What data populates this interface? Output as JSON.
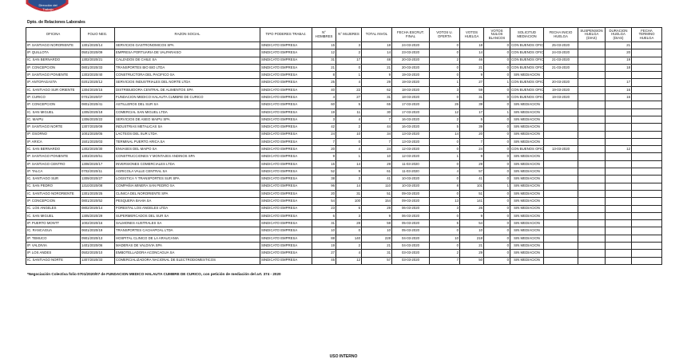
{
  "header": {
    "organization": "Dirección del Trabajo",
    "department": "Dpto. de Relaciones Laborales"
  },
  "table": {
    "columns": [
      "OFICINA",
      "FOLIO NEG.",
      "RAZON SOCIAL",
      "TIPO PODERES TRABAJ.",
      "N° HOMBRES",
      "N° MUJERES",
      "TOTAL INVOL",
      "FECHA ESCRUT. FINAL",
      "VOTOS U. OFERTA",
      "VOTOS HUELGA",
      "VOTOS NULOS BLANCOS",
      "SOLICITUD MEDIACION",
      "FECHA INICIO HUELGA",
      "SUSPENSION HUELGA (DIAS)",
      "DURACION HUELGA (DIAS)",
      "FECHA TERMINO HUELGA"
    ],
    "rows": [
      [
        "IP. SANTIAGO NORORIENTE",
        "1301/2020/14",
        "SERVICIOS GASTRONOMICOS SPA",
        "SINDICATO EMPRESA",
        15,
        3,
        18,
        "24-03-2020",
        0,
        18,
        0,
        "CON BUENOS OFICIOS",
        "25-03-2020",
        null,
        21,
        null
      ],
      [
        "IP. QUILLOTA",
        "0501/2020/09",
        "EMPRESA PORTUARIA DE VALPARAISO",
        "SINDICATO EMPRESA",
        12,
        2,
        14,
        "23-03-2020",
        0,
        14,
        0,
        "CON BUENOS OFICIOS",
        "24-03-2020",
        null,
        20,
        null
      ],
      [
        "IC. SAN BERNARDO",
        "1302/2020/21",
        "CALZADOS DE CHILE SA",
        "SINDICATO EMPRESA",
        31,
        17,
        48,
        "20-03-2020",
        2,
        46,
        0,
        "CON BUENOS OFICIOS",
        "21-03-2020",
        null,
        19,
        null
      ],
      [
        "IP. CONCEPCION",
        "0801/2020/33",
        "TRANSPORTES BIO BIO LTDA",
        "SINDICATO EMPRESA",
        21,
        0,
        21,
        "20-03-2020",
        0,
        21,
        0,
        "CON BUENOS OFICIOS",
        "21-03-2020",
        null,
        18,
        null
      ],
      [
        "IP. SANTIAGO PONIENTE",
        "1303/2020/40",
        "CONSTRUCTORA DEL PACIFICO SA",
        "SINDICATO EMPRESA",
        8,
        1,
        9,
        "19-03-2020",
        0,
        9,
        0,
        "SIN MEDIACION",
        null,
        null,
        null,
        null
      ],
      [
        "IP. ANTOFAGASTA",
        "0201/2020/12",
        "SERVICIOS INDUSTRIALES DEL NORTE LTDA",
        "SINDICATO EMPRESA",
        25,
        4,
        29,
        "19-03-2020",
        1,
        27,
        1,
        "CON BUENOS OFICIOS",
        "20-03-2020",
        null,
        17,
        null
      ],
      [
        "IC. SANTIAGO SUR ORIENTE",
        "1304/2020/15",
        "DISTRIBUIDORA CENTRAL DE ALIMENTOS SPA",
        "SINDICATO EMPRESA",
        40,
        22,
        62,
        "18-03-2020",
        3,
        59,
        0,
        "CON BUENOS OFICIOS",
        "19-03-2020",
        null,
        16,
        null
      ],
      [
        "IP. CURICO",
        "0701/2020/07",
        "FUNDACION MEDICO HALAUTA CUMBRE DE CURICO",
        "SINDICATO EMPRESA",
        4,
        27,
        31,
        "18-03-2020",
        0,
        31,
        0,
        "CON BUENOS OFICIOS",
        "19-03-2020",
        null,
        16,
        null
      ],
      [
        "IP. CONCEPCION",
        "0801/2020/41",
        "ASTILLEROS DEL SUR SA",
        "SINDICATO EMPRESA",
        60,
        5,
        65,
        "17-03-2020",
        26,
        39,
        0,
        "SIN MEDIACION",
        null,
        null,
        null,
        null
      ],
      [
        "IC. SAN MIGUEL",
        "1305/2020/18",
        "COMERCIAL SAN MIGUEL LTDA",
        "SINDICATO EMPRESA",
        19,
        11,
        30,
        "17-03-2020",
        12,
        17,
        1,
        "SIN MEDIACION",
        null,
        null,
        null,
        null
      ],
      [
        "IC. MAIPU",
        "1306/2020/22",
        "SERVICIOS DE ASEO MAIPU SPA",
        "SINDICATO EMPRESA",
        3,
        4,
        7,
        "16-03-2020",
        2,
        5,
        0,
        "SIN MEDIACION",
        null,
        null,
        null,
        null
      ],
      [
        "IP. SANTIAGO NORTE",
        "1307/2020/09",
        "INDUSTRIAS METALICAS SA",
        "SINDICATO EMPRESA",
        42,
        2,
        44,
        "16-03-2020",
        5,
        39,
        0,
        "SIN MEDIACION",
        null,
        null,
        null,
        null
      ],
      [
        "IP. OSORNO",
        "1001/2020/05",
        "LACTEOS DEL SUR LTDA",
        "SINDICATO EMPRESA",
        24,
        10,
        34,
        "13-03-2020",
        14,
        20,
        0,
        "SIN MEDIACION",
        null,
        null,
        null,
        null
      ],
      [
        "IP. ARICA",
        "1501/2020/03",
        "TERMINAL PUERTO ARICA SA",
        "SINDICATO EMPRESA",
        7,
        0,
        7,
        "13-03-2020",
        0,
        7,
        0,
        "SIN MEDIACION",
        null,
        null,
        null,
        null
      ],
      [
        "IC. SAN BERNARDO",
        "1302/2020/30",
        "ENVASES DEL MAIPO SA",
        "SINDICATO EMPRESA",
        20,
        4,
        24,
        "12-03-2020",
        0,
        24,
        0,
        "CON BUENOS OFICIOS",
        "13-03-2020",
        null,
        12,
        null
      ],
      [
        "IP. SANTIAGO PONIENTE",
        "1303/2020/51",
        "CONSTRUCCIONES Y MONTAJES ANDINOS SPA",
        "SINDICATO EMPRESA",
        9,
        1,
        10,
        "12-03-2020",
        1,
        9,
        0,
        "SIN MEDIACION",
        null,
        null,
        null,
        null
      ],
      [
        "IP. SANTIAGO CENTRO",
        "1308/2020/17",
        "INVERSIONES COMERCIALES LTDA",
        "SINDICATO EMPRESA",
        15,
        14,
        29,
        "11-03-2020",
        0,
        29,
        0,
        "SIN MEDIACION",
        null,
        null,
        null,
        null
      ],
      [
        "IP. TALCA",
        "0702/2020/11",
        "AGRICOLA VALLE CENTRAL SA",
        "SINDICATO EMPRESA",
        52,
        9,
        61,
        "11-03-2020",
        4,
        57,
        0,
        "SIN MEDIACION",
        null,
        null,
        null,
        null
      ],
      [
        "IC. SANTIAGO SUR",
        "1309/2020/27",
        "LOGISTICA Y TRANSPORTES SUR SPA",
        "SINDICATO EMPRESA",
        38,
        3,
        41,
        "10-03-2020",
        0,
        41,
        0,
        "SIN MEDIACION",
        null,
        null,
        null,
        null
      ],
      [
        "IC. SAN PEDRO",
        "1310/2020/08",
        "COMPAÑIA MINERA SAN PEDRO SA",
        "SINDICATO EMPRESA",
        96,
        14,
        110,
        "10-03-2020",
        8,
        101,
        1,
        "SIN MEDIACION",
        null,
        null,
        null,
        null
      ],
      [
        "IC. SANTIAGO NORORIENTE",
        "1301/2020/25",
        "CLINICA DEL NORORIENTE SPA",
        "SINDICATO EMPRESA",
        20,
        31,
        51,
        "09-03-2020",
        0,
        51,
        0,
        "SIN MEDIACION",
        null,
        null,
        null,
        null
      ],
      [
        "IP. CONCEPCION",
        "0801/2020/52",
        "PESQUERA BAHIA SA",
        "SINDICATO EMPRESA",
        54,
        100,
        154,
        "09-03-2020",
        13,
        141,
        0,
        "SIN MEDIACION",
        null,
        null,
        null,
        null
      ],
      [
        "IC. LOS ANGELES",
        "0802/2020/14",
        "FORESTAL LOS ANGELES LTDA",
        "SINDICATO EMPRESA",
        23,
        6,
        29,
        "06-03-2020",
        3,
        26,
        0,
        "SIN MEDIACION",
        null,
        null,
        null,
        null
      ],
      [
        "IC. SAN MIGUEL",
        "1305/2020/29",
        "SUPERMERCADOS DEL SUR SA",
        "SINDICATO EMPRESA",
        6,
        3,
        9,
        "06-03-2020",
        0,
        9,
        0,
        "SIN MEDIACION",
        null,
        null,
        null,
        null
      ],
      [
        "IP. PUERTO MONTT",
        "1002/2020/16",
        "SALMONES AUSTRALES SA",
        "SINDICATO EMPRESA",
        31,
        28,
        59,
        "05-03-2020",
        5,
        54,
        0,
        "SIN MEDIACION",
        null,
        null,
        null,
        null
      ],
      [
        "IC. RANCAGUA",
        "0601/2020/19",
        "TRANSPORTES CACHAPOAL LTDA",
        "SINDICATO EMPRESA",
        10,
        0,
        10,
        "05-03-2020",
        0,
        10,
        0,
        "SIN MEDIACION",
        null,
        null,
        null,
        null
      ],
      [
        "IP. TEMUCO",
        "0901/2020/13",
        "HOSPITAL CLINICO DE LA ARAUCANIA",
        "SINDICATO EMPRESA",
        88,
        140,
        228,
        "04-03-2020",
        10,
        218,
        0,
        "SIN MEDIACION",
        null,
        null,
        null,
        null
      ],
      [
        "IP. VALDIVIA",
        "1401/2020/06",
        "MADERAS DE VALDIVIA SPA",
        "SINDICATO EMPRESA",
        19,
        2,
        21,
        "04-03-2020",
        0,
        21,
        0,
        "SIN MEDIACION",
        null,
        null,
        null,
        null
      ],
      [
        "IP. LOS ANDES",
        "0502/2020/10",
        "EMBOTELLADORA ACONCAGUA SA",
        "SINDICATO EMPRESA",
        27,
        4,
        31,
        "03-03-2020",
        2,
        29,
        0,
        "SIN MEDIACION",
        null,
        null,
        null,
        null
      ],
      [
        "IC. SANTIAGO NORTE",
        "1307/2020/33",
        "COMERCIALIZADORA NACIONAL DE ELECTRODOMESTICOS",
        "SINDICATO EMPRESA",
        45,
        12,
        57,
        "03-03-2020",
        7,
        50,
        0,
        "SIN MEDIACION",
        null,
        null,
        null,
        null
      ]
    ]
  },
  "footnote": "*Negociación Colectiva folio 0701/2020/07 de FUNDACION MEDICO HALAUTA CUMBRE DE CURICO, con petición de mediación del art. 374 - 2020",
  "footer": "USO INTERNO"
}
